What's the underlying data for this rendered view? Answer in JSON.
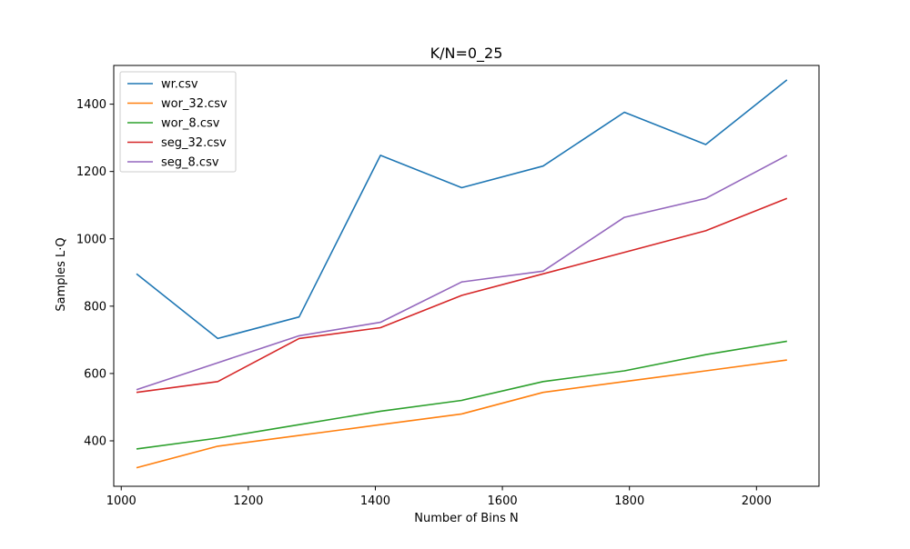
{
  "chart_data": {
    "type": "line",
    "title": "K/N=0_25",
    "xlabel": "Number of Bins N",
    "ylabel": "Samples  L·Q",
    "x": [
      1024,
      1152,
      1280,
      1408,
      1536,
      1664,
      1792,
      1920,
      2048
    ],
    "xlim": [
      988.2,
      2098.4
    ],
    "ylim": [
      265,
      1515
    ],
    "xticks": [
      1000,
      1200,
      1400,
      1600,
      1800,
      2000
    ],
    "yticks": [
      400,
      600,
      800,
      1000,
      1200,
      1400
    ],
    "grid": false,
    "legend_position": "top-left",
    "series": [
      {
        "name": "wr.csv",
        "color": "#1f77b4",
        "values": [
          896,
          704,
          768,
          1248,
          1152,
          1216,
          1376,
          1280,
          1472
        ]
      },
      {
        "name": "wor_32.csv",
        "color": "#ff7f0e",
        "values": [
          320,
          384,
          416,
          448,
          480,
          544,
          576,
          608,
          640
        ]
      },
      {
        "name": "wor_8.csv",
        "color": "#2ca02c",
        "values": [
          376,
          408,
          448,
          488,
          520,
          576,
          608,
          656,
          696
        ]
      },
      {
        "name": "seg_32.csv",
        "color": "#d62728",
        "values": [
          544,
          576,
          704,
          736,
          832,
          896,
          960,
          1024,
          1120
        ]
      },
      {
        "name": "seg_8.csv",
        "color": "#9467bd",
        "values": [
          552,
          632,
          712,
          752,
          872,
          904,
          1064,
          1120,
          1248
        ]
      }
    ]
  }
}
